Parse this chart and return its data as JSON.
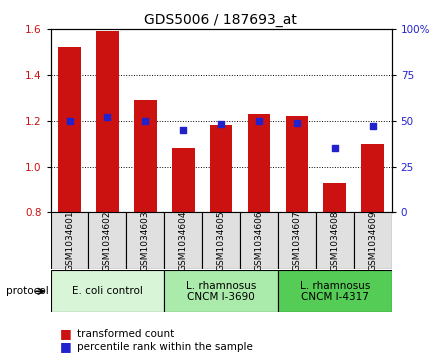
{
  "title": "GDS5006 / 187693_at",
  "samples": [
    "GSM1034601",
    "GSM1034602",
    "GSM1034603",
    "GSM1034604",
    "GSM1034605",
    "GSM1034606",
    "GSM1034607",
    "GSM1034608",
    "GSM1034609"
  ],
  "transformed_count": [
    1.52,
    1.59,
    1.29,
    1.08,
    1.18,
    1.23,
    1.22,
    0.93,
    1.1
  ],
  "percentile_rank": [
    50,
    52,
    50,
    45,
    48,
    50,
    49,
    35,
    47
  ],
  "ylim_left": [
    0.8,
    1.6
  ],
  "ylim_right": [
    0,
    100
  ],
  "yticks_left": [
    0.8,
    1.0,
    1.2,
    1.4,
    1.6
  ],
  "yticks_right": [
    0,
    25,
    50,
    75,
    100
  ],
  "bar_color": "#cc1111",
  "dot_color": "#2222cc",
  "bar_bottom": 0.8,
  "bar_width": 0.6,
  "protocols": [
    {
      "label": "E. coli control",
      "start": 0,
      "end": 3,
      "color": "#d8f5d8"
    },
    {
      "label": "L. rhamnosus\nCNCM I-3690",
      "start": 3,
      "end": 6,
      "color": "#aaeaaa"
    },
    {
      "label": "L. rhamnosus\nCNCM I-4317",
      "start": 6,
      "end": 9,
      "color": "#55cc55"
    }
  ],
  "legend_items": [
    {
      "label": "transformed count",
      "color": "#cc1111"
    },
    {
      "label": "percentile rank within the sample",
      "color": "#2222cc"
    }
  ],
  "title_fontsize": 10,
  "tick_fontsize": 7.5,
  "sample_fontsize": 6.5,
  "proto_fontsize": 7.5,
  "legend_fontsize": 7.5
}
